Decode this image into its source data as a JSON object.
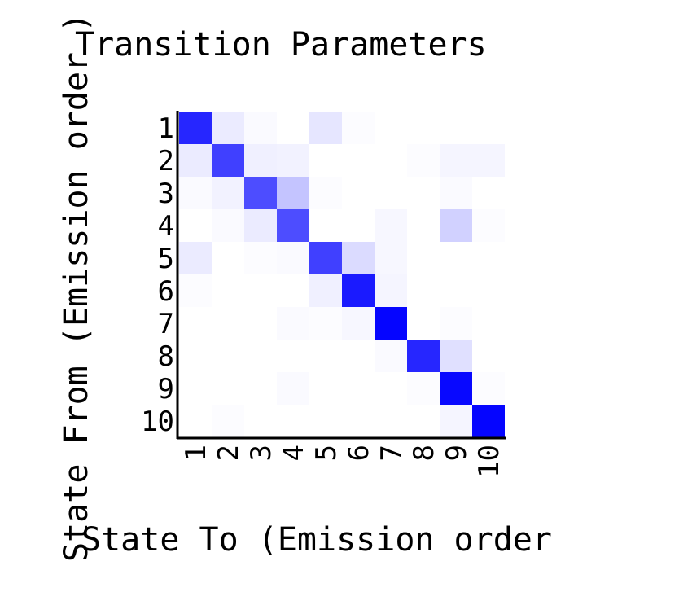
{
  "chart_data": {
    "type": "heatmap",
    "title": "Transition Parameters",
    "xlabel": "State To (Emission order",
    "ylabel": "State From (Emission order )",
    "x_categories": [
      "1",
      "2",
      "3",
      "4",
      "5",
      "6",
      "7",
      "8",
      "9",
      "10"
    ],
    "y_categories": [
      "1",
      "2",
      "3",
      "4",
      "5",
      "6",
      "7",
      "8",
      "9",
      "10"
    ],
    "color_low": "#ffffff",
    "color_high": "#0000ff",
    "value_range": [
      0,
      1
    ],
    "grid": false,
    "legend": "none",
    "values": [
      [
        0.85,
        0.08,
        0.02,
        0.0,
        0.1,
        0.01,
        0.0,
        0.0,
        0.0,
        0.0
      ],
      [
        0.08,
        0.75,
        0.06,
        0.05,
        0.0,
        0.0,
        0.0,
        0.01,
        0.04,
        0.04
      ],
      [
        0.02,
        0.05,
        0.7,
        0.23,
        0.01,
        0.0,
        0.0,
        0.0,
        0.02,
        0.0
      ],
      [
        0.0,
        0.02,
        0.08,
        0.7,
        0.0,
        0.0,
        0.03,
        0.0,
        0.18,
        0.01
      ],
      [
        0.08,
        0.0,
        0.01,
        0.02,
        0.75,
        0.14,
        0.03,
        0.0,
        0.0,
        0.0
      ],
      [
        0.01,
        0.0,
        0.0,
        0.0,
        0.06,
        0.9,
        0.04,
        0.0,
        0.0,
        0.0
      ],
      [
        0.0,
        0.0,
        0.0,
        0.02,
        0.01,
        0.03,
        0.98,
        0.0,
        0.01,
        0.0
      ],
      [
        0.0,
        0.0,
        0.0,
        0.0,
        0.0,
        0.0,
        0.02,
        0.85,
        0.12,
        0.0
      ],
      [
        0.0,
        0.0,
        0.0,
        0.02,
        0.0,
        0.0,
        0.0,
        0.01,
        0.97,
        0.01
      ],
      [
        0.0,
        0.01,
        0.0,
        0.0,
        0.0,
        0.0,
        0.0,
        0.0,
        0.04,
        0.98
      ]
    ]
  }
}
